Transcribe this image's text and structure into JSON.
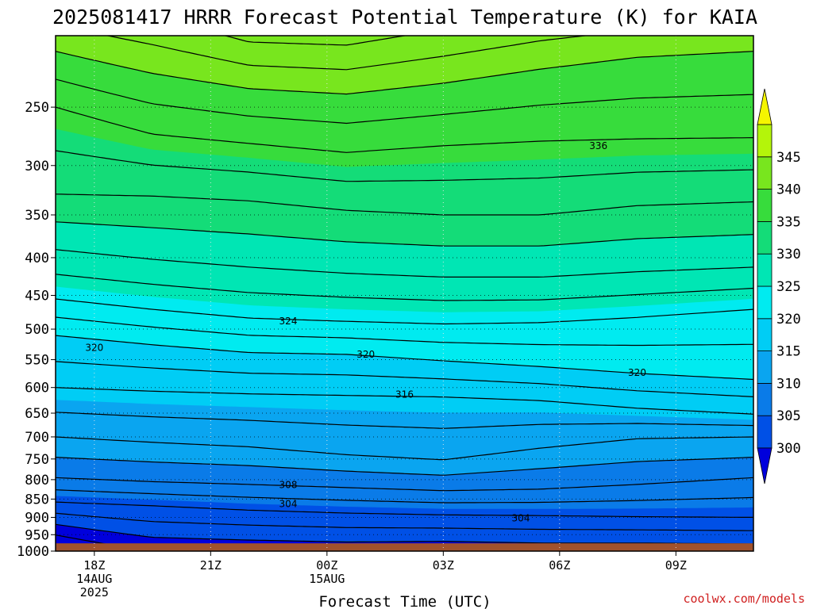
{
  "chart_data": {
    "type": "heatmap",
    "title": "2025081417 HRRR Forecast Potential Temperature (K) for KAIA",
    "xlabel": "Forecast Time (UTC)",
    "ylabel": "",
    "x_ticks": [
      {
        "label": "18Z",
        "sub1": "14AUG",
        "sub2": "2025",
        "hour": 1
      },
      {
        "label": "21Z",
        "sub1": "",
        "sub2": "",
        "hour": 4
      },
      {
        "label": "00Z",
        "sub1": "15AUG",
        "sub2": "",
        "hour": 7
      },
      {
        "label": "03Z",
        "sub1": "",
        "sub2": "",
        "hour": 10
      },
      {
        "label": "06Z",
        "sub1": "",
        "sub2": "",
        "hour": 13
      },
      {
        "label": "09Z",
        "sub1": "",
        "sub2": "",
        "hour": 16
      }
    ],
    "xlim": [
      0,
      18
    ],
    "y_pressure_levels": [
      250,
      300,
      350,
      400,
      450,
      500,
      550,
      600,
      650,
      700,
      750,
      800,
      850,
      900,
      950,
      1000
    ],
    "ylim_hPa": [
      200,
      1000
    ],
    "y_scale": "log-pressure",
    "surface_pressure_hPa": 976,
    "colorbar": {
      "ticks": [
        300,
        305,
        310,
        315,
        320,
        325,
        330,
        335,
        340,
        345
      ],
      "levels": [
        295,
        300,
        305,
        310,
        315,
        320,
        325,
        330,
        335,
        340,
        345,
        350
      ],
      "colors": [
        "#0000dc",
        "#0050e6",
        "#0a7be8",
        "#0aa5f0",
        "#00cdf5",
        "#00ebf0",
        "#00e6b4",
        "#14dc78",
        "#37dc3c",
        "#78e61e",
        "#b4f50a",
        "#f5f500"
      ]
    },
    "contour_labels": [
      {
        "text": "336",
        "hour": 14,
        "hPa": 282
      },
      {
        "text": "324",
        "hour": 6,
        "hPa": 488
      },
      {
        "text": "320",
        "hour": 1,
        "hPa": 530
      },
      {
        "text": "320",
        "hour": 8,
        "hPa": 541
      },
      {
        "text": "320",
        "hour": 15,
        "hPa": 573
      },
      {
        "text": "316",
        "hour": 9,
        "hPa": 613
      },
      {
        "text": "308",
        "hour": 6,
        "hPa": 813
      },
      {
        "text": "304",
        "hour": 6,
        "hPa": 863
      },
      {
        "text": "304",
        "hour": 12,
        "hPa": 902
      }
    ],
    "grid": true,
    "legend": "right colorbar"
  },
  "credit": "coolwx.com/models"
}
